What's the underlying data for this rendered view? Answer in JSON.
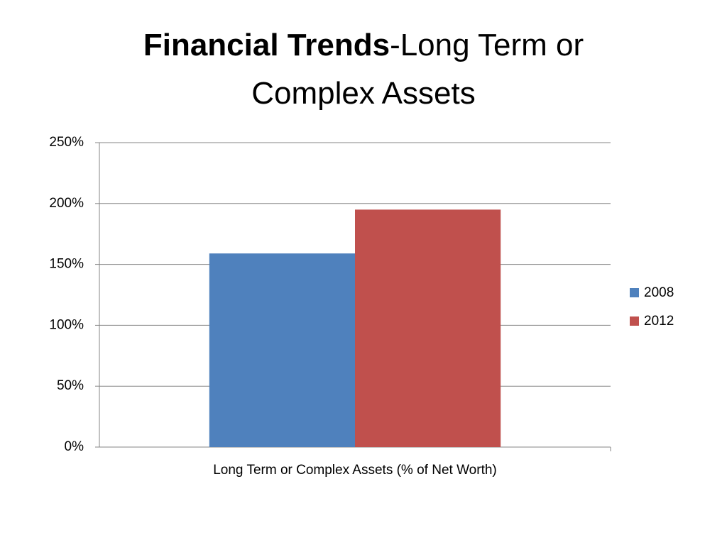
{
  "chart_data": {
    "type": "bar",
    "title_bold": "Financial Trends",
    "title_rest": "-Long Term or Complex Assets",
    "categories": [
      "Long Term or Complex Assets (% of Net Worth)"
    ],
    "series": [
      {
        "name": "2008",
        "color": "#4f81bd",
        "values": [
          159
        ]
      },
      {
        "name": "2012",
        "color": "#c0504d",
        "values": [
          195
        ]
      }
    ],
    "ylim": [
      0,
      250
    ],
    "yticks": [
      {
        "value": 0,
        "label": "0%"
      },
      {
        "value": 50,
        "label": "50%"
      },
      {
        "value": 100,
        "label": "100%"
      },
      {
        "value": 150,
        "label": "150%"
      },
      {
        "value": 200,
        "label": "200%"
      },
      {
        "value": 250,
        "label": "250%"
      }
    ],
    "grid": true,
    "legend": "right"
  }
}
